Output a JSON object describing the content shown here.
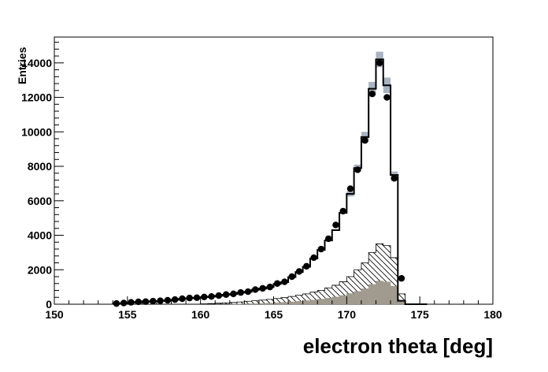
{
  "chart_data": {
    "type": "histogram",
    "xlabel": "electron theta [deg]",
    "ylabel": "Entries",
    "xlim": [
      150,
      180
    ],
    "ylim": [
      0,
      15500
    ],
    "x_ticks": [
      150,
      155,
      160,
      165,
      170,
      175,
      180
    ],
    "x_tick_labels": [
      "150",
      "155",
      "160",
      "165",
      "170",
      "175",
      "180"
    ],
    "y_ticks": [
      0,
      2000,
      4000,
      6000,
      8000,
      10000,
      12000,
      14000
    ],
    "y_tick_labels": [
      "0",
      "2000",
      "4000",
      "6000",
      "8000",
      "10000",
      "12000",
      "14000"
    ],
    "grid": false,
    "bin_width": 0.5,
    "bin_centers": [
      154.25,
      154.75,
      155.25,
      155.75,
      156.25,
      156.75,
      157.25,
      157.75,
      158.25,
      158.75,
      159.25,
      159.75,
      160.25,
      160.75,
      161.25,
      161.75,
      162.25,
      162.75,
      163.25,
      163.75,
      164.25,
      164.75,
      165.25,
      165.75,
      166.25,
      166.75,
      167.25,
      167.75,
      168.25,
      168.75,
      169.25,
      169.75,
      170.25,
      170.75,
      171.25,
      171.75,
      172.25,
      172.75,
      173.25,
      173.75,
      174.25,
      174.75,
      175.25
    ],
    "series": [
      {
        "style": "points",
        "color": "#000000",
        "values": [
          40,
          70,
          110,
          140,
          150,
          180,
          200,
          230,
          270,
          320,
          360,
          380,
          420,
          450,
          500,
          560,
          600,
          680,
          730,
          850,
          920,
          1000,
          1200,
          1300,
          1600,
          1900,
          2200,
          2700,
          3200,
          3800,
          4600,
          5400,
          6700,
          7800,
          9500,
          12200,
          14000,
          12000,
          7300,
          1500,
          0,
          0,
          0
        ]
      },
      {
        "style": "step-line",
        "color": "#000000",
        "values": [
          30,
          60,
          100,
          130,
          140,
          170,
          190,
          220,
          260,
          310,
          350,
          370,
          410,
          440,
          490,
          550,
          590,
          670,
          720,
          840,
          910,
          990,
          1180,
          1280,
          1570,
          1870,
          2170,
          2650,
          3150,
          3700,
          4300,
          5300,
          6400,
          7900,
          9700,
          12500,
          14200,
          12700,
          7500,
          200,
          0,
          0,
          0
        ]
      },
      {
        "style": "uncertainty-band",
        "color": "#a9b4c2",
        "values": [
          30,
          60,
          100,
          130,
          140,
          170,
          190,
          220,
          260,
          310,
          350,
          370,
          410,
          440,
          490,
          550,
          590,
          670,
          720,
          840,
          910,
          990,
          1180,
          1280,
          1570,
          1870,
          2170,
          2650,
          3150,
          3700,
          4300,
          5300,
          6400,
          7900,
          9700,
          12500,
          14200,
          12700,
          7500,
          200,
          0,
          0,
          0
        ],
        "errors": [
          0,
          0,
          0,
          0,
          0,
          0,
          0,
          0,
          0,
          0,
          0,
          0,
          0,
          0,
          0,
          0,
          0,
          0,
          0,
          0,
          0,
          0,
          0,
          0,
          0,
          0,
          0,
          0,
          0,
          0,
          0,
          0,
          150,
          200,
          300,
          400,
          450,
          450,
          200,
          0,
          0,
          0,
          0
        ]
      },
      {
        "style": "hatched",
        "color": "#000000",
        "values": [
          0,
          0,
          0,
          0,
          0,
          0,
          0,
          0,
          0,
          0,
          0,
          0,
          20,
          40,
          60,
          80,
          100,
          130,
          170,
          200,
          240,
          280,
          330,
          380,
          450,
          520,
          600,
          700,
          800,
          950,
          1100,
          1300,
          1600,
          2000,
          2400,
          3000,
          3500,
          3400,
          2700,
          600,
          0,
          0,
          0
        ]
      },
      {
        "style": "filled",
        "color": "#a19a8e",
        "values": [
          0,
          0,
          0,
          0,
          0,
          0,
          0,
          0,
          0,
          0,
          0,
          0,
          0,
          0,
          0,
          0,
          10,
          20,
          30,
          40,
          50,
          70,
          90,
          110,
          140,
          170,
          210,
          250,
          300,
          360,
          430,
          510,
          620,
          750,
          900,
          1150,
          1350,
          1300,
          1050,
          150,
          0,
          0,
          0
        ]
      }
    ]
  }
}
